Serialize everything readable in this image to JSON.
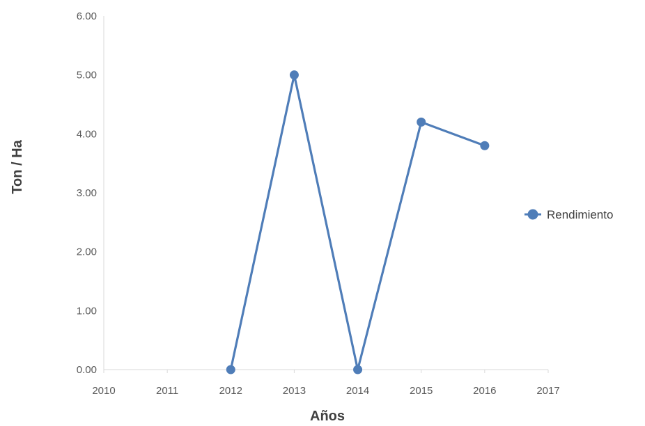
{
  "chart_data": {
    "type": "line",
    "title": "",
    "xlabel": "Años",
    "ylabel": "Ton / Ha",
    "xlim": [
      2010,
      2017
    ],
    "ylim": [
      0,
      6
    ],
    "x_ticks": [
      "2010",
      "2011",
      "2012",
      "2013",
      "2014",
      "2015",
      "2016",
      "2017"
    ],
    "y_ticks": [
      "0.00",
      "1.00",
      "2.00",
      "3.00",
      "4.00",
      "5.00",
      "6.00"
    ],
    "grid": false,
    "legend_position": "right",
    "series": [
      {
        "name": "Rendimiento",
        "color": "#4F7DB8",
        "x": [
          2012,
          2013,
          2014,
          2015,
          2016
        ],
        "values": [
          0.0,
          5.0,
          0.0,
          4.2,
          3.8
        ]
      }
    ]
  }
}
